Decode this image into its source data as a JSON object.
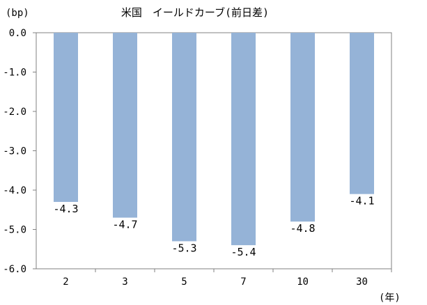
{
  "chart_data": {
    "type": "bar",
    "title": "米国　イールドカーブ(前日差)",
    "ylabel": "(bp)",
    "xlabel": "(年)",
    "categories": [
      "2",
      "3",
      "5",
      "7",
      "10",
      "30"
    ],
    "values": [
      -4.3,
      -4.7,
      -5.3,
      -5.4,
      -4.8,
      -4.1
    ],
    "value_labels": [
      "-4.3",
      "-4.7",
      "-5.3",
      "-5.4",
      "-4.8",
      "-4.1"
    ],
    "ylim": [
      -6.0,
      0.0
    ],
    "yticks": [
      "0.0",
      "-1.0",
      "-2.0",
      "-3.0",
      "-4.0",
      "-5.0",
      "-6.0"
    ],
    "ytick_values": [
      0,
      -1,
      -2,
      -3,
      -4,
      -5,
      -6
    ],
    "grid": false,
    "legend": "none",
    "bar_color": "#95b3d7"
  }
}
